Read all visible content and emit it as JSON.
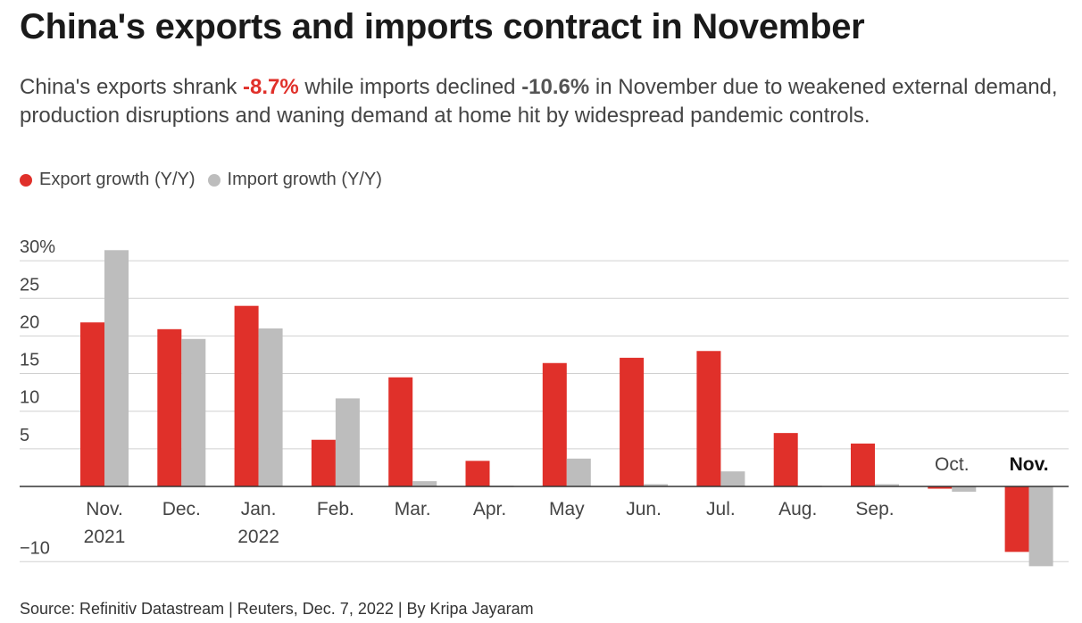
{
  "title": "China's exports and imports contract in November",
  "subtitle": {
    "part1": "China's exports shrank ",
    "export_value": "-8.7%",
    "part2": " while imports declined ",
    "import_value": "-10.6%",
    "part3": " in November due to weakened external demand, production disruptions and waning demand at home hit by widespread pandemic controls."
  },
  "source": "Source: Refinitiv Datastream | Reuters, Dec. 7, 2022 | By Kripa Jayaram",
  "chart_data": {
    "type": "bar",
    "categories": [
      "Nov.|2021",
      "Dec.",
      "Jan.|2022",
      "Feb.",
      "Mar.",
      "Apr.",
      "May",
      "Jun.",
      "Jul.",
      "Aug.",
      "Sep.",
      "Oct.",
      "Nov."
    ],
    "series": [
      {
        "name": "Export growth (Y/Y)",
        "color": "#e0302a",
        "values": [
          21.8,
          20.9,
          24.0,
          6.2,
          14.5,
          3.4,
          16.4,
          17.1,
          18.0,
          7.1,
          5.7,
          -0.3,
          -8.7
        ]
      },
      {
        "name": "Import growth (Y/Y)",
        "color": "#bdbdbd",
        "values": [
          31.4,
          19.6,
          21.0,
          11.7,
          0.7,
          0.1,
          3.7,
          0.3,
          2.0,
          0.1,
          0.3,
          -0.7,
          -10.6
        ]
      }
    ],
    "yticks": [
      {
        "v": 30,
        "label": "30%"
      },
      {
        "v": 25,
        "label": "25"
      },
      {
        "v": 20,
        "label": "20"
      },
      {
        "v": 15,
        "label": "15"
      },
      {
        "v": 10,
        "label": "10"
      },
      {
        "v": 5,
        "label": "5"
      },
      {
        "v": -10,
        "label": "−10"
      }
    ],
    "ylim": [
      -10,
      31.4
    ],
    "grid": true,
    "legend": "top-left",
    "highlight_category": "Nov."
  }
}
